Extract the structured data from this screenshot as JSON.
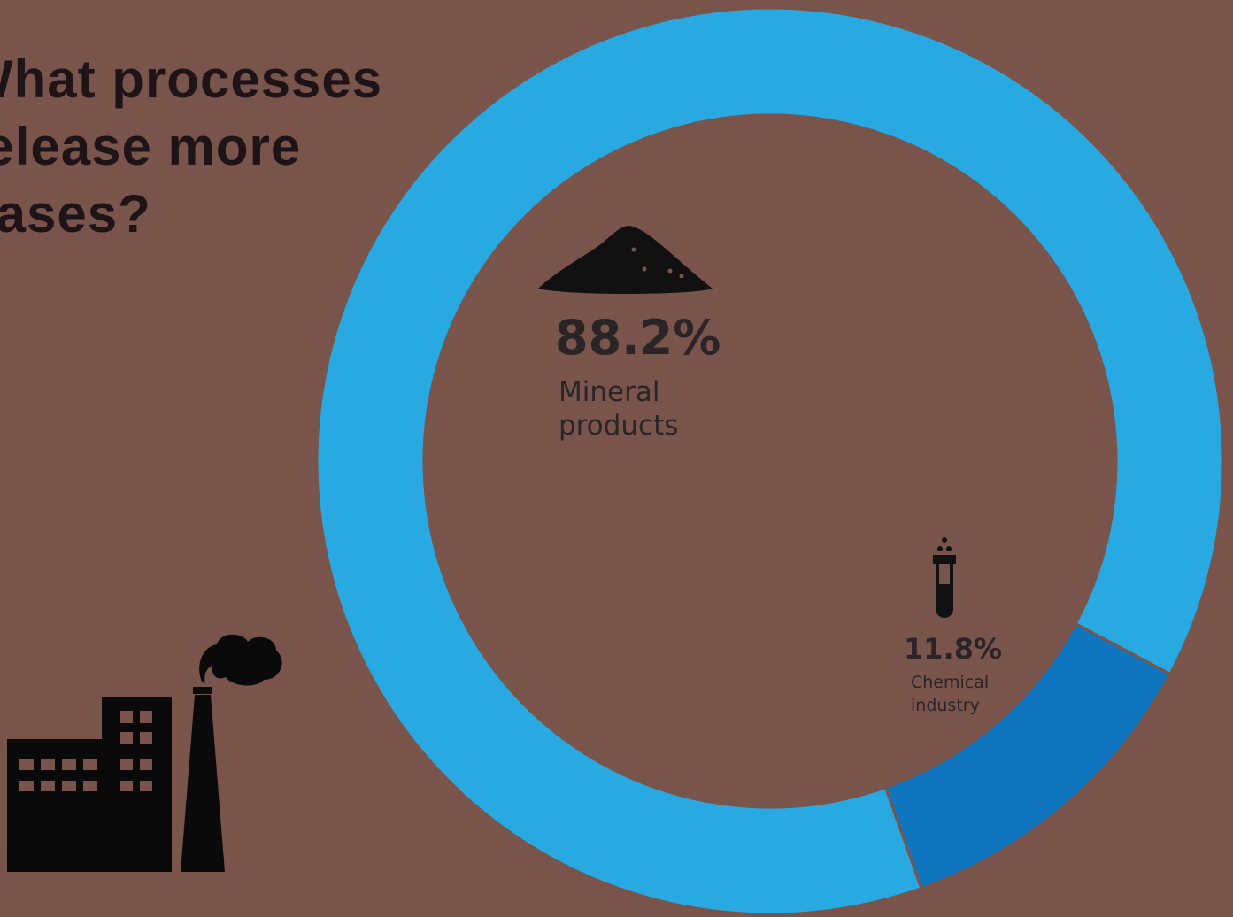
{
  "chart_data": {
    "type": "donut",
    "title": "What processes release more gases?",
    "categories": [
      "Mineral products",
      "Chemical industry"
    ],
    "values": [
      88.2,
      11.8
    ],
    "value_labels": [
      "88.2%",
      "11.8%"
    ],
    "colors": [
      "#29a9e1",
      "#0f75bf"
    ]
  }
}
